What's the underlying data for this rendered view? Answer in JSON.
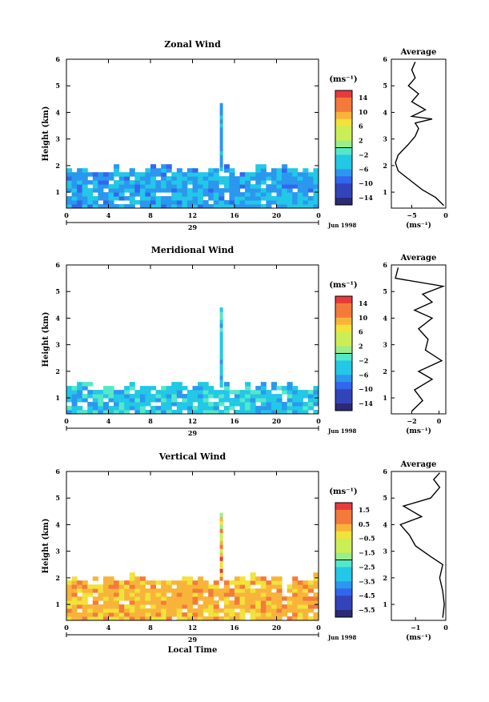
{
  "chart_data": [
    {
      "type": "heatmap",
      "title": "Zonal Wind",
      "ylabel": "Height (km)",
      "x_ticks": [
        "0",
        "4",
        "8",
        "12",
        "16",
        "20",
        "0"
      ],
      "y_ticks": [
        "1",
        "2",
        "3",
        "4",
        "5",
        "6"
      ],
      "xlim": [
        0,
        24
      ],
      "ylim": [
        0.4,
        6
      ],
      "date_day": "29",
      "date_label": "Jun 1998",
      "colorbar": {
        "unit": "(ms⁻¹)",
        "ticks": [
          "14",
          "10",
          "6",
          "2",
          "−2",
          "−6",
          "−10",
          "−14"
        ],
        "range": [
          -16,
          16
        ]
      },
      "dominant_value": -6,
      "profile": {
        "title": "Average",
        "xlabel": "(ms⁻¹)",
        "x_ticks": [
          "−5",
          "0"
        ],
        "xlim": [
          -8,
          0
        ],
        "points": [
          [
            -0.3,
            0.5
          ],
          [
            -1.5,
            0.8
          ],
          [
            -3.5,
            1.1
          ],
          [
            -5.5,
            1.5
          ],
          [
            -7.0,
            1.8
          ],
          [
            -7.4,
            2.1
          ],
          [
            -7.0,
            2.4
          ],
          [
            -5.5,
            2.8
          ],
          [
            -4.5,
            3.1
          ],
          [
            -4.0,
            3.4
          ],
          [
            -4.5,
            3.6
          ],
          [
            -2.0,
            3.75
          ],
          [
            -5.0,
            3.85
          ],
          [
            -3.0,
            4.1
          ],
          [
            -5.0,
            4.4
          ],
          [
            -4.0,
            4.7
          ],
          [
            -5.5,
            5.0
          ],
          [
            -4.5,
            5.3
          ],
          [
            -5.0,
            5.6
          ],
          [
            -4.5,
            5.9
          ]
        ]
      }
    },
    {
      "type": "heatmap",
      "title": "Meridional Wind",
      "ylabel": "Height (km)",
      "x_ticks": [
        "0",
        "4",
        "8",
        "12",
        "16",
        "20",
        "0"
      ],
      "y_ticks": [
        "1",
        "2",
        "3",
        "4",
        "5",
        "6"
      ],
      "xlim": [
        0,
        24
      ],
      "ylim": [
        0.4,
        6
      ],
      "date_day": "29",
      "date_label": "Jun 1998",
      "colorbar": {
        "unit": "(ms⁻¹)",
        "ticks": [
          "14",
          "10",
          "6",
          "2",
          "−2",
          "−6",
          "−10",
          "−14"
        ],
        "range": [
          -16,
          16
        ]
      },
      "dominant_value": -4,
      "profile": {
        "title": "Average",
        "xlabel": "(ms⁻¹)",
        "x_ticks": [
          "−2",
          "0"
        ],
        "xlim": [
          -3.5,
          0.5
        ],
        "points": [
          [
            -2.0,
            0.5
          ],
          [
            -1.2,
            0.9
          ],
          [
            -1.8,
            1.3
          ],
          [
            -0.5,
            1.7
          ],
          [
            -1.5,
            2.0
          ],
          [
            0.2,
            2.4
          ],
          [
            -1.0,
            2.8
          ],
          [
            -0.8,
            3.2
          ],
          [
            -1.5,
            3.6
          ],
          [
            -0.5,
            4.0
          ],
          [
            -1.8,
            4.3
          ],
          [
            -0.5,
            4.6
          ],
          [
            -1.2,
            4.9
          ],
          [
            0.3,
            5.2
          ],
          [
            -3.2,
            5.5
          ],
          [
            -3.0,
            5.9
          ]
        ]
      }
    },
    {
      "type": "heatmap",
      "title": "Vertical Wind",
      "ylabel": "Height (km)",
      "xlabel": "Local Time",
      "x_ticks": [
        "0",
        "4",
        "8",
        "12",
        "16",
        "20",
        "0"
      ],
      "y_ticks": [
        "1",
        "2",
        "3",
        "4",
        "5",
        "6"
      ],
      "xlim": [
        0,
        24
      ],
      "ylim": [
        0.4,
        6
      ],
      "date_day": "29",
      "date_label": "Jun 1998",
      "colorbar": {
        "unit": "(ms⁻¹)",
        "ticks": [
          "1.5",
          "0.5",
          "−0.5",
          "−1.5",
          "−2.5",
          "−3.5",
          "−4.5",
          "−5.5"
        ],
        "range": [
          -6,
          2
        ]
      },
      "dominant_value": 0.3,
      "profile": {
        "title": "Average",
        "xlabel": "(ms⁻¹)",
        "x_ticks": [
          "−1",
          "0"
        ],
        "xlim": [
          -1.8,
          0
        ],
        "points": [
          [
            -0.1,
            0.5
          ],
          [
            -0.05,
            1.0
          ],
          [
            -0.1,
            1.5
          ],
          [
            -0.2,
            2.0
          ],
          [
            -0.1,
            2.5
          ],
          [
            -0.5,
            2.8
          ],
          [
            -1.0,
            3.2
          ],
          [
            -1.2,
            3.6
          ],
          [
            -1.5,
            4.0
          ],
          [
            -0.8,
            4.3
          ],
          [
            -1.4,
            4.7
          ],
          [
            -0.5,
            5.0
          ],
          [
            -0.2,
            5.4
          ],
          [
            -0.4,
            5.7
          ],
          [
            -0.2,
            5.95
          ]
        ]
      }
    }
  ]
}
